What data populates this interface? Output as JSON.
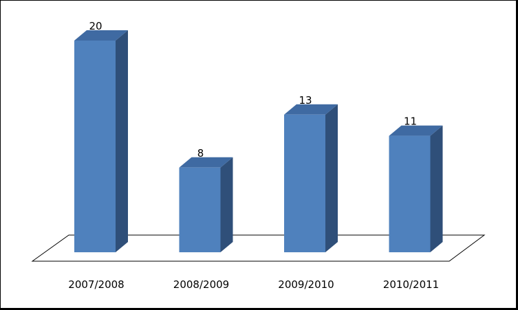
{
  "chart_data": {
    "type": "bar",
    "style": "3d-column",
    "categories": [
      "2007/2008",
      "2008/2009",
      "2009/2010",
      "2010/2011"
    ],
    "values": [
      20,
      8,
      13,
      11
    ],
    "ylim": [
      0,
      20
    ],
    "grid": false,
    "legend": "none",
    "show_data_labels": true,
    "colors": {
      "front": "#4F81BD",
      "side": "#2F4F79",
      "top": "#3F6AA2",
      "floor_stroke": "#000000"
    }
  }
}
